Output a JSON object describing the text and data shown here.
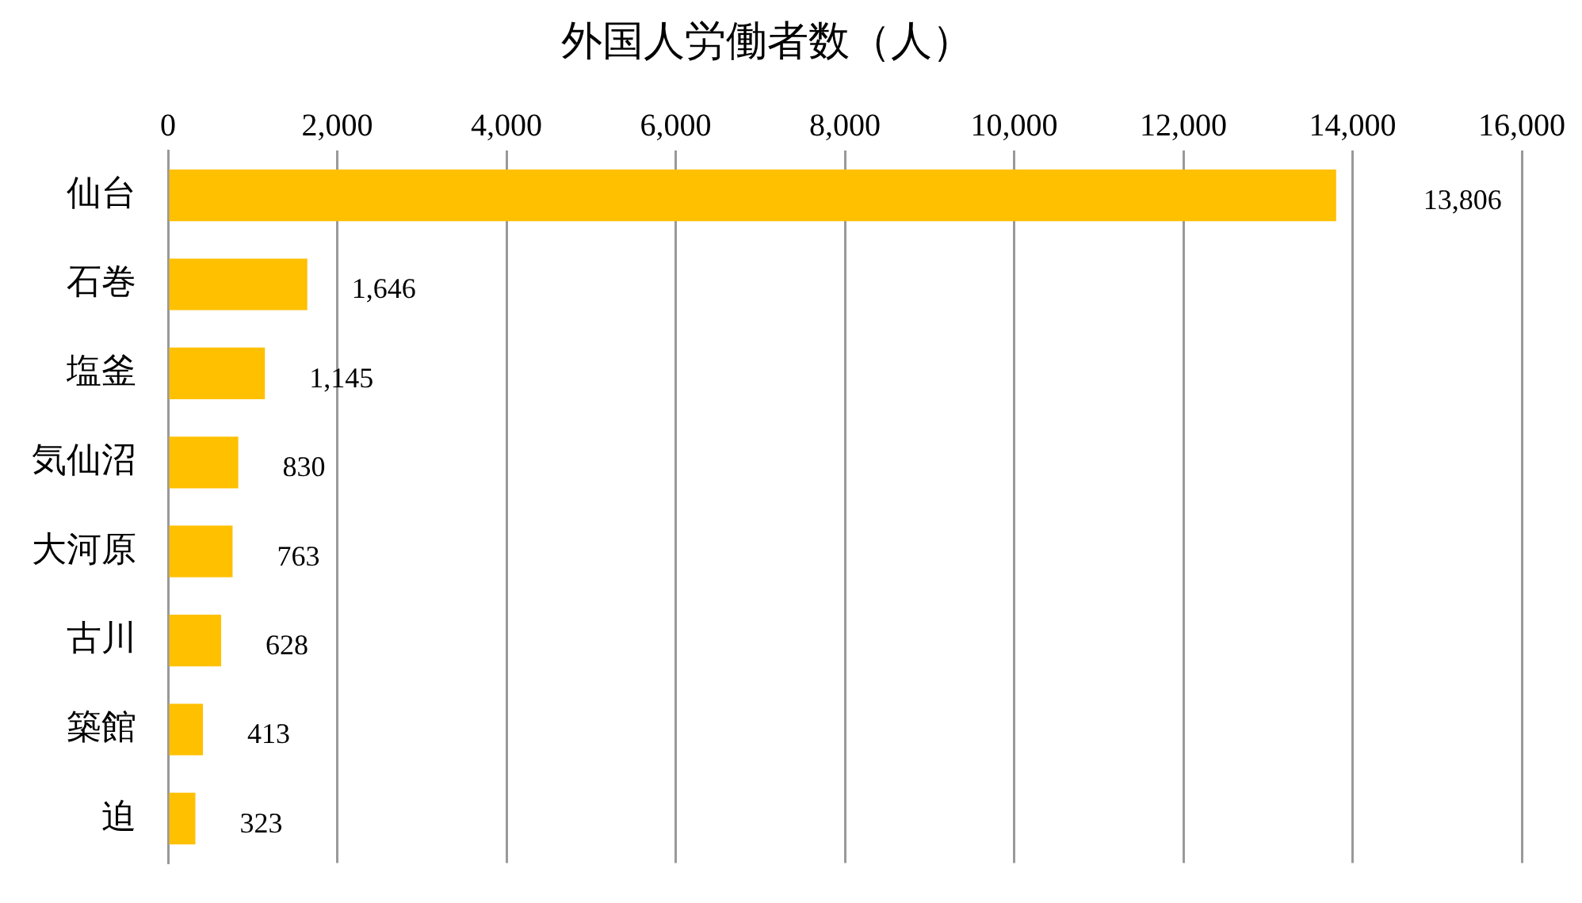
{
  "chart_data": {
    "type": "bar",
    "orientation": "horizontal",
    "title": "外国人労働者数（人）",
    "categories": [
      "仙台",
      "石巻",
      "塩釜",
      "気仙沼",
      "大河原",
      "古川",
      "築館",
      "迫"
    ],
    "values": [
      13806,
      1646,
      1145,
      830,
      763,
      628,
      413,
      323
    ],
    "color": "#ffc000",
    "xlim": [
      0,
      16000
    ],
    "xticks": [
      {
        "value": 0,
        "label": "0"
      },
      {
        "value": 2000,
        "label": "2,000"
      },
      {
        "value": 4000,
        "label": "4,000"
      },
      {
        "value": 6000,
        "label": "6,000"
      },
      {
        "value": 8000,
        "label": "8,000"
      },
      {
        "value": 10000,
        "label": "10,000"
      },
      {
        "value": 12000,
        "label": "12,000"
      },
      {
        "value": 14000,
        "label": "14,000"
      },
      {
        "value": 16000,
        "label": "16,000"
      }
    ],
    "value_labels": [
      "13,806",
      "1,646",
      "1,145",
      "830",
      "763",
      "628",
      "413",
      "323"
    ],
    "grid": "x",
    "legend": false
  }
}
